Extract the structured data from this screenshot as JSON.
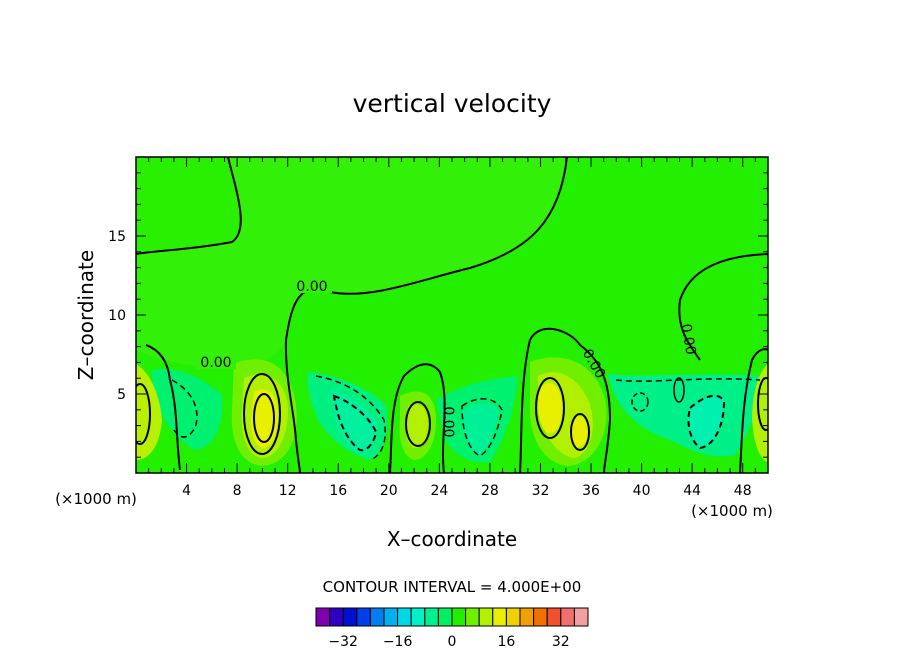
{
  "chart_data": {
    "type": "heatmap",
    "title": "vertical velocity",
    "xlabel": "X–coordinate",
    "ylabel": "Z–coordinate",
    "x_unit": "(×1000 m)",
    "x_unit_right": "(×1000 m)",
    "xlim": [
      0,
      50
    ],
    "ylim": [
      0,
      20
    ],
    "x_ticks": [
      4,
      8,
      12,
      16,
      20,
      24,
      28,
      32,
      36,
      40,
      44,
      48
    ],
    "y_ticks": [
      5,
      10,
      15
    ],
    "contour_interval_text": "CONTOUR INTERVAL = 4.000E+00",
    "contour_labels": [
      "0.00",
      "0.00",
      "0.00",
      "0.00",
      "0.00"
    ],
    "colorbar": {
      "ticks": [
        -32,
        -16,
        0,
        16,
        32
      ],
      "tick_labels": [
        "−32",
        "−16",
        "0",
        "16",
        "32"
      ],
      "colors": [
        "#8000b0",
        "#3000c0",
        "#0010d0",
        "#0040e8",
        "#0080f0",
        "#00b0f0",
        "#00d8e8",
        "#00f0c8",
        "#00f090",
        "#00f060",
        "#20f000",
        "#70f000",
        "#b0f000",
        "#e8f000",
        "#f0d000",
        "#f0a000",
        "#f07000",
        "#f05030",
        "#f07070",
        "#f0a0a0"
      ]
    },
    "grid": false,
    "legend": "colorbar-bottom",
    "field_colors": {
      "zero_band": "#22f000",
      "weak_down": "#00f060",
      "mid_down": "#00f090",
      "weak_up": "#70f000",
      "mid_up": "#b0f000",
      "strong_up": "#e8f000"
    }
  }
}
